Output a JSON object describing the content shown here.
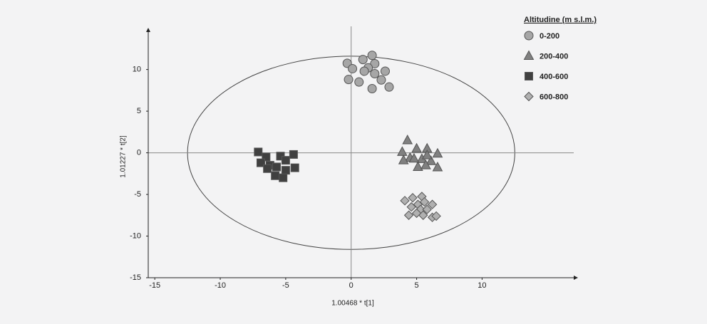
{
  "chart_data": {
    "type": "scatter",
    "xlabel": "1.00468 * t[1]",
    "ylabel": "1.01227 * t[2]",
    "legend_title": "Altitudine (m s.l.m.)",
    "legend": "top-right",
    "xlim": [
      -15.5,
      17
    ],
    "ylim": [
      -15,
      14.5
    ],
    "xticks": [
      -15,
      -10,
      -5,
      0,
      5,
      10
    ],
    "yticks": [
      -15,
      -10,
      -5,
      0,
      5,
      10
    ],
    "ellipse": {
      "rx": 12.5,
      "ry": 11.6
    },
    "series": [
      {
        "name": "0-200",
        "color": "#a6a6a6",
        "marker": "circle",
        "x": [
          -0.3,
          0.1,
          0.9,
          1.6,
          1.8,
          1.3,
          1.0,
          1.8,
          2.6,
          -0.2,
          0.6,
          2.3,
          1.6,
          2.9
        ],
        "values": [
          10.75,
          10.1,
          11.2,
          11.7,
          10.7,
          10.2,
          9.8,
          9.5,
          9.8,
          8.8,
          8.5,
          8.75,
          7.7,
          7.9
        ]
      },
      {
        "name": "200-400",
        "color": "#808080",
        "marker": "triangle",
        "x": [
          4.3,
          3.9,
          5.0,
          5.8,
          6.6,
          4.5,
          4.0,
          5.4,
          6.1,
          5.1,
          5.7,
          6.6,
          4.8,
          5.8
        ],
        "values": [
          1.5,
          0.1,
          0.5,
          0.5,
          -0.1,
          -0.6,
          -0.9,
          -0.75,
          -1.0,
          -1.7,
          -1.5,
          -1.75,
          -0.7,
          -0.3
        ]
      },
      {
        "name": "400-600",
        "color": "#404040",
        "marker": "square",
        "x": [
          -7.1,
          -6.5,
          -6.9,
          -6.2,
          -5.4,
          -5.0,
          -4.4,
          -5.7,
          -5.0,
          -4.3,
          -6.4,
          -5.8,
          -5.2
        ],
        "values": [
          0.1,
          -0.5,
          -1.2,
          -1.5,
          -0.4,
          -0.9,
          -0.2,
          -1.7,
          -2.1,
          -1.8,
          -1.9,
          -2.75,
          -3.0
        ]
      },
      {
        "name": "600-800",
        "color": "#b0b0b0",
        "marker": "diamond",
        "x": [
          4.1,
          4.7,
          5.4,
          5.1,
          5.6,
          6.2,
          4.6,
          5.3,
          5.8,
          5.0,
          4.4,
          5.5,
          6.2,
          6.5
        ],
        "values": [
          -5.75,
          -5.4,
          -5.25,
          -6.2,
          -5.9,
          -6.2,
          -6.5,
          -6.8,
          -6.8,
          -7.25,
          -7.5,
          -7.5,
          -7.75,
          -7.6
        ]
      }
    ]
  }
}
